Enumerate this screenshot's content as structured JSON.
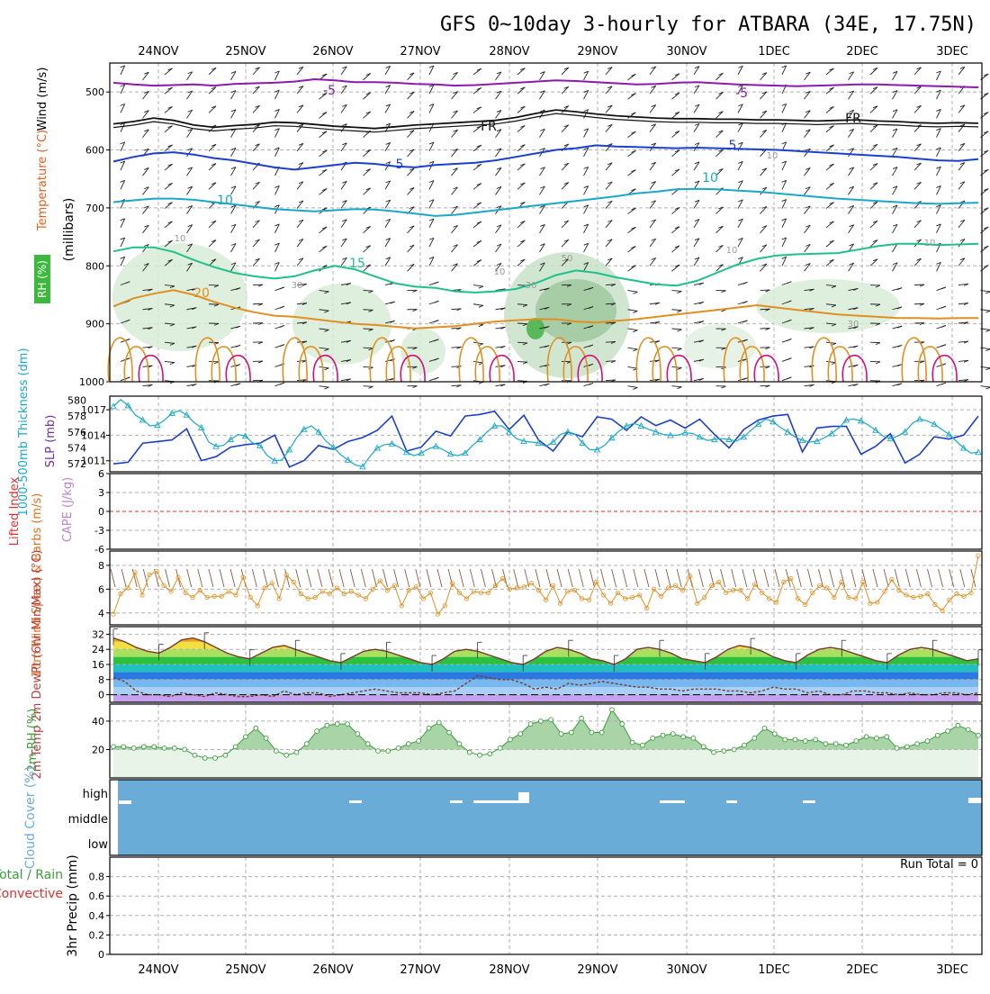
{
  "title": "GFS 0~10day 3-hourly for ATBARA (34E, 17.75N)",
  "dates": [
    "24NOV",
    "25NOV",
    "26NOV",
    "27NOV",
    "28NOV",
    "29NOV",
    "30NOV",
    "1DEC",
    "2DEC",
    "3DEC"
  ],
  "colors": {
    "purple": "#8a1ab0",
    "blue": "#1c3fcc",
    "cyan": "#1aa8c8",
    "teal": "#1fc08a",
    "orange": "#e09020",
    "magenta": "#d0107a",
    "black": "#111111",
    "sky": "#6aacd8",
    "green": "#3c9c3c",
    "red": "#e03030"
  },
  "chart_data": [
    {
      "type": "line",
      "panel": "upper-air",
      "ylabel_parts": [
        "RH (%)",
        "Temperature (°C)",
        "Wind (m/s)"
      ],
      "ylabel_units": "(millibars)",
      "yticks": [
        500,
        600,
        700,
        800,
        900,
        1000
      ],
      "ylim": [
        1000,
        450
      ],
      "contour_labels": [
        "-5",
        "-5",
        "FR",
        "FR",
        "5",
        "5",
        "10",
        "10",
        "15",
        "20",
        "10",
        "10",
        "10",
        "10",
        "30",
        "30",
        "30",
        "50",
        "10"
      ],
      "series": [
        {
          "name": "-5",
          "values": [
            484,
            487,
            489,
            488,
            487,
            489,
            486,
            485,
            484,
            482,
            478,
            480,
            483,
            483,
            484,
            486,
            487,
            489,
            488,
            486,
            484,
            482,
            480,
            481,
            483,
            485,
            487,
            486,
            484,
            483,
            485,
            487,
            488,
            489,
            490,
            489,
            488,
            487,
            487,
            488,
            489,
            490,
            491,
            492
          ]
        },
        {
          "name": "FR",
          "values": [
            555,
            551,
            545,
            549,
            557,
            561,
            558,
            556,
            552,
            553,
            556,
            559,
            561,
            563,
            560,
            557,
            555,
            553,
            551,
            549,
            544,
            537,
            531,
            534,
            538,
            541,
            543,
            545,
            546,
            546,
            547,
            547,
            548,
            548,
            549,
            550,
            549,
            548,
            550,
            551,
            553,
            554,
            553,
            554
          ]
        },
        {
          "name": "5",
          "values": [
            620,
            612,
            606,
            604,
            608,
            614,
            618,
            624,
            630,
            634,
            630,
            626,
            622,
            624,
            628,
            630,
            626,
            624,
            622,
            618,
            612,
            606,
            600,
            597,
            592,
            594,
            595,
            596,
            597,
            596,
            597,
            598,
            599,
            600,
            602,
            604,
            606,
            608,
            610,
            612,
            615,
            618,
            619,
            616
          ]
        },
        {
          "name": "10",
          "values": [
            690,
            687,
            684,
            684,
            686,
            690,
            694,
            698,
            702,
            704,
            706,
            704,
            702,
            703,
            706,
            710,
            714,
            712,
            708,
            704,
            700,
            696,
            692,
            688,
            684,
            680,
            675,
            672,
            668,
            667,
            668,
            670,
            672,
            675,
            678,
            681,
            684,
            686,
            688,
            690,
            692,
            693,
            692,
            691
          ]
        },
        {
          "name": "15",
          "values": [
            775,
            768,
            768,
            776,
            790,
            802,
            812,
            818,
            822,
            818,
            808,
            800,
            806,
            818,
            830,
            836,
            838,
            844,
            846,
            844,
            840,
            830,
            816,
            808,
            812,
            820,
            826,
            832,
            834,
            826,
            812,
            798,
            788,
            782,
            780,
            779,
            778,
            772,
            766,
            762,
            762,
            764,
            763,
            762
          ]
        },
        {
          "name": "20",
          "values": [
            870,
            856,
            848,
            842,
            850,
            862,
            872,
            880,
            886,
            888,
            892,
            896,
            900,
            902,
            905,
            908,
            906,
            904,
            900,
            896,
            894,
            892,
            892,
            896,
            898,
            895,
            892,
            888,
            884,
            880,
            876,
            872,
            868,
            872,
            876,
            880,
            884,
            886,
            888,
            890,
            890,
            891,
            890,
            890
          ]
        }
      ]
    },
    {
      "type": "line",
      "panel": "thickness-slp",
      "ylabel_left": "1000-500mb Thickness (dm)",
      "ylabel_right": "SLP (mb)",
      "yticks_left": [
        572,
        574,
        576,
        578,
        580
      ],
      "yticks_right": [
        1011,
        1014,
        1017
      ],
      "series": [
        {
          "name": "1000-500mb Thickness",
          "values": [
            572.0,
            572.2,
            574.6,
            574.8,
            575.0,
            576.4,
            572.4,
            572.9,
            574.1,
            574.4,
            574.6,
            575.6,
            571.6,
            572.4,
            574.3,
            573.8,
            574.8,
            575.3,
            576.2,
            578.0,
            573.6,
            574.1,
            576.1,
            575.5,
            578.0,
            578.2,
            578.6,
            576.3,
            578.1,
            575.0,
            573.6,
            576.0,
            575.4,
            577.9,
            577.6,
            576.2,
            577.9,
            576.8,
            577.5,
            576.5,
            577.6,
            575.7,
            574.0,
            576.3,
            577.5,
            578.0,
            578.2,
            573.5,
            576.5,
            576.7,
            576.7,
            573.2,
            574.2,
            575.8,
            572.1,
            573.2,
            575.4,
            575.1,
            575.6,
            578.0
          ]
        },
        {
          "name": "SLP",
          "values": [
            1017.4,
            1018.2,
            1017.5,
            1016.4,
            1015.8,
            1015.1,
            1015.2,
            1015.8,
            1016.6,
            1016.9,
            1016.4,
            1015.5,
            1014.9,
            1013.2,
            1012.7,
            1012.8,
            1013.5,
            1014.1,
            1013.9,
            1013.1,
            1012.8,
            1011.6,
            1011.0,
            1011.1,
            1012.3,
            1013.7,
            1014.7,
            1015.1,
            1014.4,
            1013.3,
            1012.6,
            1011.7,
            1011.1,
            1010.5,
            1010.3,
            1011.5,
            1012.5,
            1012.9,
            1013.0,
            1012.6,
            1012.0,
            1011.6,
            1011.9,
            1012.4,
            1012.7,
            1012.3,
            1011.8,
            1011.6,
            1011.9,
            1012.8,
            1013.5,
            1014.4,
            1015.1,
            1015.1,
            1014.4,
            1013.6,
            1013.3,
            1013.2,
            1013.1,
            1012.7,
            1013.2,
            1014.1,
            1014.4,
            1014.1,
            1013.1,
            1012.3,
            1012.3,
            1012.8,
            1013.7,
            1014.5,
            1015.1,
            1015.4,
            1015.1,
            1014.7,
            1014.4,
            1014.1,
            1014.0,
            1014.0,
            1014.3,
            1014.2,
            1013.8,
            1013.4,
            1013.5,
            1013.6,
            1013.5,
            1013.3,
            1013.8,
            1014.6,
            1015.3,
            1015.9,
            1015.6,
            1014.9,
            1014.4,
            1013.8,
            1013.4,
            1013.2,
            1013.3,
            1013.7,
            1014.2,
            1014.9,
            1015.8,
            1015.9,
            1015.7,
            1015.2,
            1014.6,
            1013.9,
            1013.6,
            1013.9,
            1014.4,
            1015.4,
            1015.9,
            1015.7,
            1015.3,
            1014.7,
            1014.1,
            1013.3,
            1012.5,
            1011.9,
            1012.0
          ]
        }
      ]
    },
    {
      "type": "line",
      "panel": "stability",
      "ylabel_left": "Lifted Index",
      "ylabel_right": "CAPE (J/kg)",
      "yticks": [
        6,
        3,
        0,
        -3,
        -6
      ],
      "ylim": [
        6,
        -6
      ]
    },
    {
      "type": "line",
      "panel": "10m-wind",
      "ylabel": "10m Wind Speed & Barbs (m/s)",
      "yticks": [
        4,
        6,
        8
      ],
      "ylim": [
        3.0,
        9.2
      ],
      "series": [
        {
          "name": "10m Wind Speed",
          "values": [
            3.9,
            5.6,
            6.1,
            7.4,
            5.5,
            7.2,
            7.5,
            6.3,
            5.8,
            7.0,
            5.7,
            5.3,
            5.9,
            5.3,
            5.4,
            5.4,
            5.8,
            5.5,
            7.0,
            5.3,
            4.6,
            6.1,
            6.5,
            5.2,
            7.2,
            6.6,
            5.6,
            5.2,
            5.3,
            5.8,
            5.6,
            6.1,
            5.6,
            5.8,
            5.5,
            5.2,
            6.0,
            6.7,
            5.9,
            6.3,
            4.6,
            5.9,
            6.2,
            5.2,
            5.7,
            3.9,
            4.6,
            6.5,
            5.7,
            5.2,
            5.8,
            5.7,
            5.7,
            6.3,
            6.9,
            6.0,
            6.1,
            6.2,
            6.5,
            5.9,
            5.1,
            6.3,
            4.8,
            5.8,
            5.9,
            5.2,
            5.1,
            6.6,
            5.5,
            4.8,
            5.7,
            5.2,
            5.3,
            5.5,
            4.4,
            6.0,
            5.4,
            6.1,
            6.3,
            5.9,
            7.1,
            4.8,
            5.3,
            6.3,
            6.6,
            5.7,
            5.9,
            5.9,
            5.2,
            6.4,
            5.7,
            5.2,
            4.9,
            6.6,
            6.9,
            5.2,
            4.7,
            5.7,
            6.3,
            6.1,
            5.3,
            6.6,
            5.3,
            5.2,
            6.6,
            4.8,
            4.9,
            5.8,
            6.8,
            5.9,
            5.5,
            5.3,
            5.4,
            5.6,
            4.7,
            4.2,
            5.1,
            5.6,
            5.4,
            5.7,
            8.8
          ]
        }
      ]
    },
    {
      "type": "line",
      "panel": "2m-temp",
      "ylabel": "2m Temp 2m DewPt (6hr Min/Max) (°C)",
      "yticks": [
        0,
        8,
        16,
        24,
        32
      ],
      "ylim": [
        -4,
        36
      ],
      "series": [
        {
          "name": "2m Temp",
          "values": [
            30,
            28,
            25,
            23,
            22,
            25,
            29,
            30,
            28,
            25,
            22,
            20,
            19,
            22,
            25,
            26,
            24,
            22,
            20,
            18,
            17,
            20,
            23,
            24,
            23,
            21,
            19,
            17,
            16,
            19,
            23,
            24,
            23,
            21,
            19,
            17,
            16,
            19,
            23,
            25,
            24,
            22,
            19,
            18,
            16,
            19,
            24,
            25,
            24,
            22,
            19,
            18,
            17,
            20,
            24,
            26,
            25,
            23,
            20,
            18,
            17,
            21,
            24,
            25,
            24,
            22,
            20,
            18,
            17,
            21,
            24,
            25,
            24,
            22,
            20,
            18,
            19
          ]
        },
        {
          "name": "2m DewPt",
          "values": [
            9,
            7,
            2,
            0,
            0,
            -1,
            1,
            0,
            -1,
            1,
            0,
            -1,
            -1,
            0,
            -1,
            2,
            0,
            1,
            1,
            -1,
            0,
            1,
            2,
            3,
            2,
            1,
            1,
            1,
            0,
            1,
            2,
            6,
            10,
            9,
            8,
            8,
            6,
            3,
            4,
            3,
            6,
            5,
            6,
            7,
            6,
            5,
            4,
            4,
            3,
            3,
            2,
            3,
            3,
            3,
            2,
            2,
            1,
            2,
            4,
            3,
            3,
            1,
            2,
            0,
            0,
            2,
            2,
            1,
            1,
            0,
            1,
            0,
            0,
            1,
            1,
            0,
            1
          ]
        }
      ]
    },
    {
      "type": "area",
      "panel": "2m-rh",
      "ylabel": "2m RH (%)",
      "yticks": [
        20,
        40
      ],
      "ylim": [
        0,
        52
      ],
      "series": [
        {
          "name": "2m RH",
          "values": [
            22,
            22,
            21,
            22,
            22,
            21,
            21,
            20,
            16,
            14,
            14,
            16,
            22,
            29,
            35,
            28,
            19,
            16,
            18,
            24,
            33,
            37,
            38,
            38,
            31,
            24,
            19,
            19,
            21,
            24,
            26,
            35,
            39,
            32,
            24,
            18,
            16,
            17,
            21,
            27,
            31,
            38,
            40,
            41,
            31,
            32,
            42,
            32,
            32,
            48,
            38,
            25,
            23,
            28,
            30,
            31,
            29,
            28,
            22,
            18,
            19,
            20,
            23,
            28,
            35,
            31,
            27,
            27,
            26,
            27,
            24,
            24,
            23,
            26,
            29,
            28,
            29,
            21,
            22,
            24,
            26,
            30,
            33,
            37,
            34,
            30
          ]
        }
      ]
    },
    {
      "type": "area",
      "panel": "cloud-cover",
      "ylabel": "Cloud Cover (%)",
      "yticks": [
        "high",
        "middle",
        "low"
      ]
    },
    {
      "type": "bar",
      "panel": "precip",
      "ylabel_parts": [
        "Total / Rain",
        "Convective"
      ],
      "ylabel": "3hr Precip (mm)",
      "yticks": [
        0,
        0.2,
        0.4,
        0.6,
        0.8
      ],
      "ylim": [
        0,
        1.0
      ],
      "annotation": "Run Total = 0",
      "values": []
    }
  ]
}
